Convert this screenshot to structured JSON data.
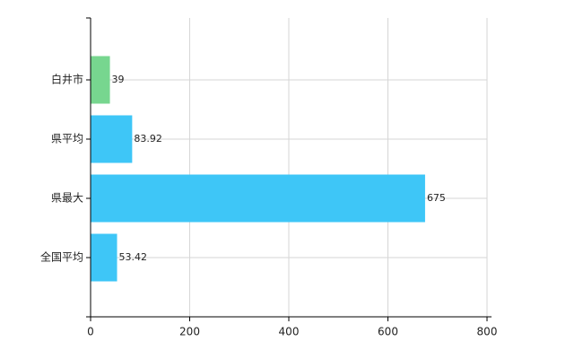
{
  "chart_data": {
    "type": "bar",
    "orientation": "horizontal",
    "categories": [
      "白井市",
      "県平均",
      "県最大",
      "全国平均"
    ],
    "values": [
      39,
      83.92,
      675,
      53.42
    ],
    "colors": [
      "#77d68f",
      "#3ec6f7",
      "#3ec6f7",
      "#3ec6f7"
    ],
    "xlim": [
      0,
      800
    ],
    "xticks": [
      0,
      200,
      400,
      600,
      800
    ],
    "grid": true
  }
}
